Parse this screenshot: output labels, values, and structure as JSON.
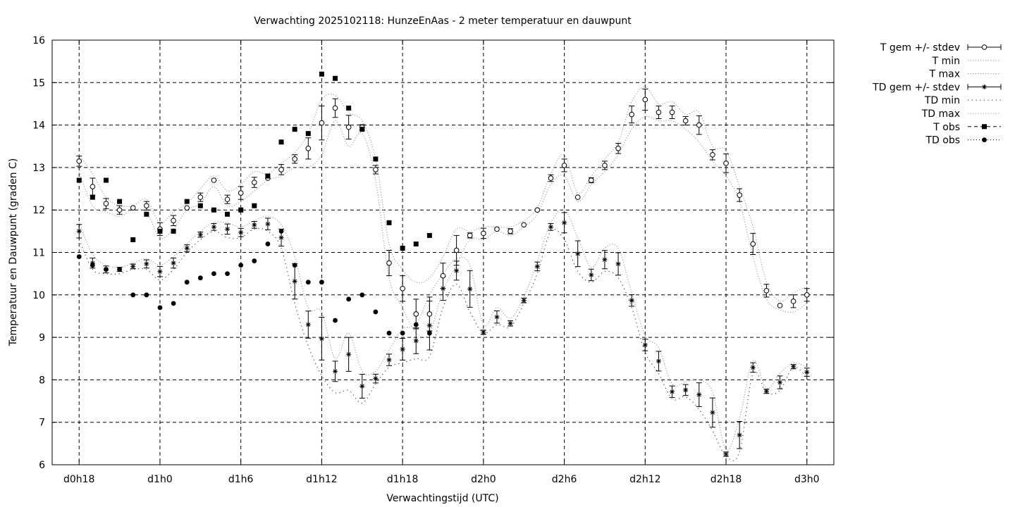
{
  "chart_data": {
    "type": "line",
    "title": "Verwachting 2025102118: HunzeEnAas - 2 meter temperatuur en dauwpunt",
    "xlabel": "Verwachtingstijd (UTC)",
    "ylabel": "Temperatuur en Dauwpunt (graden C)",
    "ylim": [
      6,
      16
    ],
    "xlim": [
      -2,
      56
    ],
    "yticks": [
      "6",
      "7",
      "8",
      "9",
      "10",
      "11",
      "12",
      "13",
      "14",
      "15",
      "16"
    ],
    "xticks": [
      {
        "x": 0,
        "label": "d0h18"
      },
      {
        "x": 6,
        "label": "d1h0"
      },
      {
        "x": 12,
        "label": "d1h6"
      },
      {
        "x": 18,
        "label": "d1h12"
      },
      {
        "x": 24,
        "label": "d1h18"
      },
      {
        "x": 30,
        "label": "d2h0"
      },
      {
        "x": 36,
        "label": "d2h6"
      },
      {
        "x": 42,
        "label": "d2h12"
      },
      {
        "x": 48,
        "label": "d2h18"
      },
      {
        "x": 54,
        "label": "d3h0"
      }
    ],
    "grid": true,
    "legend_position": "outside-top-right",
    "x": [
      0,
      1,
      2,
      3,
      4,
      5,
      6,
      7,
      8,
      9,
      10,
      11,
      12,
      13,
      14,
      15,
      16,
      17,
      18,
      19,
      20,
      21,
      22,
      23,
      24,
      25,
      26,
      27,
      28,
      29,
      30,
      31,
      32,
      33,
      34,
      35,
      36,
      37,
      38,
      39,
      40,
      41,
      42,
      43,
      44,
      45,
      46,
      47,
      48,
      49,
      50,
      51,
      52,
      53,
      54
    ],
    "series": [
      {
        "name": "T gem +/- stdev",
        "marker": "open-circle",
        "values": [
          13.15,
          12.55,
          12.15,
          12.0,
          12.05,
          12.1,
          11.55,
          11.75,
          12.05,
          12.3,
          12.7,
          12.25,
          12.4,
          12.65,
          12.75,
          12.95,
          13.2,
          13.45,
          14.05,
          14.4,
          13.95,
          13.95,
          12.95,
          10.75,
          10.15,
          9.55,
          9.55,
          10.45,
          11.05,
          11.4,
          11.45,
          11.55,
          11.5,
          11.65,
          12.0,
          12.75,
          13.05,
          12.3,
          12.7,
          13.05,
          13.45,
          14.25,
          14.6,
          14.3,
          14.3,
          14.1,
          14.0,
          13.3,
          13.1,
          12.35,
          11.2,
          10.1,
          9.75,
          9.85,
          10.0
        ],
        "stdev": [
          0.12,
          0.2,
          0.12,
          0.1,
          0.04,
          0.1,
          0.15,
          0.12,
          0.04,
          0.1,
          0.04,
          0.1,
          0.15,
          0.12,
          0.04,
          0.12,
          0.1,
          0.25,
          0.4,
          0.22,
          0.28,
          0.06,
          0.1,
          0.3,
          0.3,
          0.35,
          0.4,
          0.3,
          0.35,
          0.06,
          0.12,
          0.04,
          0.06,
          0.04,
          0.04,
          0.08,
          0.15,
          0.04,
          0.06,
          0.1,
          0.12,
          0.2,
          0.25,
          0.15,
          0.15,
          0.1,
          0.22,
          0.12,
          0.22,
          0.15,
          0.25,
          0.15,
          0.05,
          0.15,
          0.15
        ]
      },
      {
        "name": "T min",
        "style": "dotted",
        "values": [
          12.9,
          12.1,
          11.95,
          11.85,
          12.0,
          11.95,
          11.35,
          11.55,
          12.0,
          12.15,
          12.55,
          12.1,
          12.2,
          12.45,
          12.7,
          12.8,
          13.0,
          13.0,
          13.3,
          14.1,
          13.5,
          13.8,
          12.7,
          10.4,
          9.7,
          9.1,
          9.1,
          10.1,
          10.7,
          11.3,
          11.3,
          11.5,
          11.4,
          11.6,
          11.9,
          12.6,
          12.8,
          12.2,
          12.6,
          12.9,
          13.3,
          13.9,
          14.2,
          14.1,
          14.1,
          13.9,
          13.6,
          13.15,
          12.8,
          12.2,
          10.9,
          9.9,
          9.65,
          9.6,
          9.8
        ]
      },
      {
        "name": "T max",
        "style": "dotted",
        "values": [
          13.3,
          12.85,
          12.3,
          12.1,
          12.1,
          12.25,
          11.7,
          11.95,
          12.15,
          12.5,
          12.8,
          12.45,
          12.6,
          12.9,
          12.85,
          13.1,
          13.35,
          13.8,
          14.6,
          14.7,
          14.3,
          14.1,
          13.2,
          11.2,
          10.6,
          10.3,
          10.4,
          10.9,
          11.55,
          11.5,
          11.6,
          11.6,
          11.6,
          11.75,
          12.05,
          12.85,
          13.3,
          12.4,
          12.8,
          13.2,
          13.6,
          14.55,
          14.9,
          14.5,
          14.55,
          14.25,
          14.3,
          13.5,
          13.4,
          12.55,
          11.6,
          10.3,
          9.85,
          10.05,
          10.2
        ]
      },
      {
        "name": "TD gem +/- stdev",
        "marker": "star",
        "values": [
          11.5,
          10.75,
          10.6,
          10.6,
          10.67,
          10.73,
          10.55,
          10.75,
          11.1,
          11.42,
          11.6,
          11.55,
          11.47,
          11.65,
          11.67,
          11.35,
          10.32,
          9.3,
          8.97,
          8.2,
          8.6,
          7.85,
          8.03,
          8.47,
          8.72,
          8.92,
          9.28,
          10.15,
          10.57,
          10.14,
          9.12,
          9.48,
          9.33,
          9.87,
          10.67,
          11.6,
          11.7,
          10.97,
          10.47,
          10.83,
          10.73,
          9.87,
          8.82,
          8.44,
          7.72,
          7.76,
          7.65,
          7.23,
          6.25,
          6.7,
          8.29,
          7.73,
          7.94,
          8.31,
          8.18
        ]
      },
      {
        "name": "TD min",
        "style": "sparse-dotted",
        "values": [
          11.3,
          10.6,
          10.5,
          10.5,
          10.6,
          10.6,
          10.35,
          10.6,
          11.0,
          11.3,
          11.5,
          11.35,
          11.35,
          11.55,
          11.5,
          11.1,
          9.8,
          8.8,
          8.1,
          7.7,
          7.75,
          7.45,
          7.9,
          8.3,
          8.4,
          8.5,
          8.55,
          9.7,
          10.25,
          9.6,
          9.1,
          9.3,
          9.25,
          9.8,
          10.5,
          11.5,
          11.3,
          10.55,
          10.3,
          10.55,
          10.4,
          9.7,
          8.65,
          8.15,
          7.55,
          7.6,
          7.3,
          6.8,
          6.2,
          6.3,
          8.15,
          7.7,
          7.75,
          8.3,
          8.05
        ]
      },
      {
        "name": "TD max",
        "style": "dotted",
        "values": [
          11.7,
          10.95,
          10.7,
          10.65,
          10.75,
          10.85,
          10.7,
          10.9,
          11.2,
          11.5,
          11.7,
          11.7,
          11.6,
          11.75,
          11.85,
          11.65,
          10.9,
          9.7,
          9.6,
          8.5,
          9.1,
          8.2,
          8.2,
          8.7,
          9.2,
          9.3,
          10.0,
          10.5,
          10.85,
          10.7,
          9.3,
          9.7,
          9.45,
          9.95,
          10.8,
          11.7,
          12.0,
          11.35,
          10.65,
          11.1,
          11.1,
          10.05,
          9.05,
          8.75,
          7.9,
          7.95,
          8.0,
          7.7,
          6.35,
          7.1,
          8.45,
          7.8,
          8.15,
          8.4,
          8.3
        ]
      },
      {
        "name": "T obs",
        "marker": "filled-square",
        "values": [
          12.7,
          12.3,
          12.7,
          12.2,
          11.3,
          11.9,
          11.5,
          11.5,
          12.2,
          12.1,
          12.0,
          11.9,
          12.0,
          12.1,
          12.8,
          13.6,
          13.9,
          13.8,
          15.2,
          15.1,
          14.4,
          13.9,
          13.2,
          11.7,
          11.1,
          11.2,
          11.4,
          null,
          null,
          null,
          null,
          null,
          null,
          null,
          null,
          null,
          null,
          null,
          null,
          null,
          null,
          null,
          null,
          null,
          null,
          null,
          null,
          null,
          null,
          null,
          null,
          null,
          null,
          null,
          null
        ]
      },
      {
        "name": "TD obs",
        "marker": "filled-circle",
        "values": [
          10.9,
          10.7,
          10.6,
          10.6,
          10.0,
          10.0,
          9.7,
          9.8,
          10.3,
          10.4,
          10.5,
          10.5,
          10.7,
          10.8,
          11.2,
          11.5,
          10.7,
          10.3,
          10.3,
          9.4,
          9.9,
          10.0,
          9.6,
          9.1,
          9.1,
          9.3,
          9.1,
          null,
          null,
          null,
          null,
          null,
          null,
          null,
          null,
          null,
          null,
          null,
          null,
          null,
          null,
          null,
          null,
          null,
          null,
          null,
          null,
          null,
          null,
          null,
          null,
          null,
          null,
          null,
          null
        ]
      }
    ]
  }
}
